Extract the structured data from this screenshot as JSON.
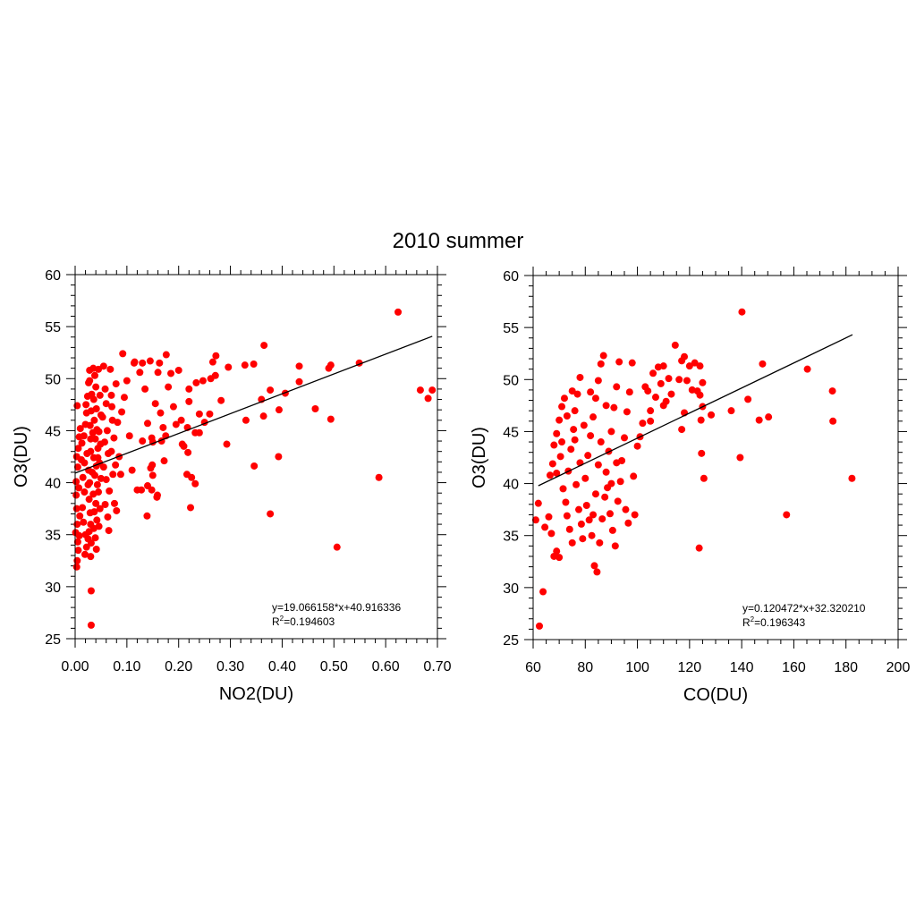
{
  "title": "2010 summer",
  "chart_data": [
    {
      "type": "scatter",
      "xlabel": "NO2(DU)",
      "ylabel": "O3(DU)",
      "xlim": [
        0,
        0.7
      ],
      "ylim": [
        25,
        60
      ],
      "x_major": 0.1,
      "x_minor": 0.02,
      "y_major": 5,
      "y_minor": 1,
      "xticks": [
        "0.00",
        "0.10",
        "0.20",
        "0.30",
        "0.40",
        "0.50",
        "0.60",
        "0.70"
      ],
      "yticks": [
        "25",
        "30",
        "35",
        "40",
        "45",
        "50",
        "55",
        "60"
      ],
      "marker_color": "#ff0000",
      "fit": {
        "slope": 19.066158,
        "intercept": 40.916336,
        "x_range": [
          0,
          0.69
        ]
      },
      "equation": "y=19.066158*x+40.916336",
      "r2_label": "R",
      "r2_sup": "2",
      "r2_value": "=0.194603",
      "points": [
        [
          0.624,
          56.4
        ],
        [
          0.365,
          53.2
        ],
        [
          0.667,
          48.9
        ],
        [
          0.682,
          48.1
        ],
        [
          0.69,
          48.9
        ],
        [
          0.587,
          40.5
        ],
        [
          0.506,
          33.8
        ],
        [
          0.377,
          37.0
        ],
        [
          0.346,
          41.6
        ],
        [
          0.393,
          42.5
        ],
        [
          0.494,
          46.1
        ],
        [
          0.464,
          47.1
        ],
        [
          0.549,
          51.5
        ],
        [
          0.494,
          51.3
        ],
        [
          0.49,
          51.0
        ],
        [
          0.433,
          51.2
        ],
        [
          0.433,
          49.7
        ],
        [
          0.406,
          48.6
        ],
        [
          0.377,
          48.9
        ],
        [
          0.36,
          48.0
        ],
        [
          0.364,
          46.4
        ],
        [
          0.394,
          47.0
        ],
        [
          0.33,
          46.0
        ],
        [
          0.293,
          43.7
        ],
        [
          0.328,
          51.3
        ],
        [
          0.345,
          51.4
        ],
        [
          0.296,
          51.1
        ],
        [
          0.272,
          52.2
        ],
        [
          0.266,
          51.6
        ],
        [
          0.271,
          50.3
        ],
        [
          0.262,
          50.0
        ],
        [
          0.247,
          49.8
        ],
        [
          0.234,
          49.6
        ],
        [
          0.282,
          47.9
        ],
        [
          0.26,
          46.6
        ],
        [
          0.24,
          46.6
        ],
        [
          0.25,
          45.8
        ],
        [
          0.22,
          47.8
        ],
        [
          0.232,
          44.8
        ],
        [
          0.217,
          45.3
        ],
        [
          0.207,
          43.7
        ],
        [
          0.218,
          42.9
        ],
        [
          0.216,
          40.8
        ],
        [
          0.225,
          40.5
        ],
        [
          0.232,
          39.9
        ],
        [
          0.223,
          37.6
        ],
        [
          0.139,
          36.8
        ],
        [
          0.128,
          39.3
        ],
        [
          0.14,
          39.7
        ],
        [
          0.148,
          39.3
        ],
        [
          0.159,
          38.8
        ],
        [
          0.158,
          38.6
        ],
        [
          0.15,
          40.7
        ],
        [
          0.149,
          41.7
        ],
        [
          0.146,
          41.4
        ],
        [
          0.15,
          43.9
        ],
        [
          0.13,
          44.0
        ],
        [
          0.167,
          44.0
        ],
        [
          0.172,
          42.1
        ],
        [
          0.17,
          45.3
        ],
        [
          0.175,
          44.5
        ],
        [
          0.092,
          52.4
        ],
        [
          0.114,
          51.5
        ],
        [
          0.13,
          51.5
        ],
        [
          0.145,
          51.7
        ],
        [
          0.163,
          51.5
        ],
        [
          0.176,
          52.3
        ],
        [
          0.031,
          29.6
        ],
        [
          0.031,
          26.3
        ],
        [
          0.003,
          31.9
        ],
        [
          0.004,
          32.5
        ],
        [
          0.002,
          38.8
        ],
        [
          0.003,
          37.5
        ],
        [
          0.004,
          36.0
        ],
        [
          0.001,
          35.2
        ],
        [
          0.005,
          34.3
        ],
        [
          0.006,
          33.5
        ],
        [
          0.002,
          40.1
        ],
        [
          0.005,
          41.5
        ],
        [
          0.003,
          42.5
        ],
        [
          0.006,
          43.3
        ],
        [
          0.008,
          44.4
        ],
        [
          0.004,
          47.4
        ],
        [
          0.01,
          45.2
        ],
        [
          0.007,
          39.5
        ],
        [
          0.009,
          36.8
        ],
        [
          0.008,
          34.9
        ],
        [
          0.012,
          42.2
        ],
        [
          0.015,
          40.5
        ],
        [
          0.018,
          39.1
        ],
        [
          0.014,
          37.6
        ],
        [
          0.016,
          36.2
        ],
        [
          0.02,
          35.0
        ],
        [
          0.022,
          33.8
        ],
        [
          0.019,
          33.1
        ],
        [
          0.025,
          34.6
        ],
        [
          0.013,
          43.8
        ],
        [
          0.017,
          44.5
        ],
        [
          0.02,
          45.6
        ],
        [
          0.022,
          46.7
        ],
        [
          0.024,
          48.3
        ],
        [
          0.026,
          49.6
        ],
        [
          0.028,
          50.8
        ],
        [
          0.021,
          47.5
        ],
        [
          0.023,
          42.8
        ],
        [
          0.026,
          41.2
        ],
        [
          0.028,
          40.0
        ],
        [
          0.027,
          38.4
        ],
        [
          0.029,
          37.1
        ],
        [
          0.03,
          36.0
        ],
        [
          0.027,
          35.3
        ],
        [
          0.031,
          34.2
        ],
        [
          0.03,
          32.9
        ],
        [
          0.025,
          39.8
        ],
        [
          0.018,
          41.9
        ],
        [
          0.03,
          43.0
        ],
        [
          0.03,
          44.2
        ],
        [
          0.029,
          45.5
        ],
        [
          0.031,
          46.9
        ],
        [
          0.032,
          48.5
        ],
        [
          0.028,
          49.8
        ],
        [
          0.035,
          51.0
        ],
        [
          0.038,
          50.3
        ],
        [
          0.04,
          49.2
        ],
        [
          0.036,
          48.0
        ],
        [
          0.041,
          47.1
        ],
        [
          0.037,
          46.0
        ],
        [
          0.042,
          45.1
        ],
        [
          0.039,
          44.2
        ],
        [
          0.044,
          43.3
        ],
        [
          0.036,
          42.4
        ],
        [
          0.041,
          41.6
        ],
        [
          0.038,
          40.7
        ],
        [
          0.043,
          39.8
        ],
        [
          0.035,
          38.9
        ],
        [
          0.04,
          38.0
        ],
        [
          0.037,
          37.2
        ],
        [
          0.042,
          36.4
        ],
        [
          0.036,
          35.6
        ],
        [
          0.039,
          34.7
        ],
        [
          0.041,
          33.6
        ],
        [
          0.046,
          35.8
        ],
        [
          0.048,
          37.5
        ],
        [
          0.045,
          39.1
        ],
        [
          0.05,
          40.4
        ],
        [
          0.047,
          41.9
        ],
        [
          0.049,
          43.7
        ],
        [
          0.046,
          44.9
        ],
        [
          0.05,
          46.5
        ],
        [
          0.048,
          48.4
        ],
        [
          0.045,
          50.9
        ],
        [
          0.033,
          41.0
        ],
        [
          0.034,
          44.8
        ],
        [
          0.044,
          42.4
        ],
        [
          0.055,
          51.2
        ],
        [
          0.058,
          49.0
        ],
        [
          0.06,
          47.6
        ],
        [
          0.053,
          46.3
        ],
        [
          0.062,
          45.0
        ],
        [
          0.057,
          43.9
        ],
        [
          0.064,
          42.8
        ],
        [
          0.055,
          41.5
        ],
        [
          0.06,
          40.3
        ],
        [
          0.066,
          39.2
        ],
        [
          0.058,
          37.9
        ],
        [
          0.063,
          36.7
        ],
        [
          0.068,
          50.9
        ],
        [
          0.07,
          48.4
        ],
        [
          0.072,
          46.0
        ],
        [
          0.075,
          44.3
        ],
        [
          0.07,
          43.0
        ],
        [
          0.078,
          41.7
        ],
        [
          0.073,
          40.8
        ],
        [
          0.076,
          38.0
        ],
        [
          0.08,
          37.3
        ],
        [
          0.065,
          35.4
        ],
        [
          0.071,
          47.3
        ],
        [
          0.079,
          49.5
        ],
        [
          0.082,
          45.8
        ],
        [
          0.085,
          42.5
        ],
        [
          0.088,
          40.8
        ],
        [
          0.09,
          46.8
        ],
        [
          0.095,
          48.2
        ],
        [
          0.1,
          49.8
        ],
        [
          0.105,
          44.5
        ],
        [
          0.11,
          41.2
        ],
        [
          0.115,
          51.6
        ],
        [
          0.12,
          39.3
        ],
        [
          0.125,
          50.6
        ],
        [
          0.135,
          49.0
        ],
        [
          0.14,
          45.7
        ],
        [
          0.148,
          44.3
        ],
        [
          0.155,
          47.6
        ],
        [
          0.16,
          50.6
        ],
        [
          0.165,
          46.7
        ],
        [
          0.18,
          49.2
        ],
        [
          0.185,
          50.5
        ],
        [
          0.19,
          47.3
        ],
        [
          0.195,
          45.6
        ],
        [
          0.2,
          50.8
        ],
        [
          0.205,
          46.0
        ],
        [
          0.21,
          43.5
        ],
        [
          0.22,
          49.0
        ],
        [
          0.24,
          44.8
        ]
      ]
    },
    {
      "type": "scatter",
      "xlabel": "CO(DU)",
      "ylabel": "O3(DU)",
      "xlim": [
        60,
        200
      ],
      "ylim": [
        25,
        60
      ],
      "x_major": 20,
      "x_minor": 5,
      "y_major": 5,
      "y_minor": 1,
      "xticks": [
        "60",
        "80",
        "100",
        "120",
        "140",
        "160",
        "180",
        "200"
      ],
      "yticks": [
        "25",
        "30",
        "35",
        "40",
        "45",
        "50",
        "55",
        "60"
      ],
      "marker_color": "#ff0000",
      "fit": {
        "slope": 0.120472,
        "intercept": 32.32021,
        "x_range": [
          62,
          182.5
        ]
      },
      "equation": "y=0.120472*x+32.320210",
      "r2_label": "R",
      "r2_sup": "2",
      "r2_value": "=0.196343",
      "points": [
        [
          140.1,
          56.5
        ],
        [
          114.5,
          53.3
        ],
        [
          148,
          51.5
        ],
        [
          165.2,
          51.0
        ],
        [
          174.8,
          48.9
        ],
        [
          175,
          46.0
        ],
        [
          150.3,
          46.4
        ],
        [
          146.7,
          46.1
        ],
        [
          142.4,
          48.1
        ],
        [
          136,
          47.0
        ],
        [
          139.4,
          42.5
        ],
        [
          157.2,
          37.0
        ],
        [
          182.3,
          40.5
        ],
        [
          123.7,
          33.8
        ],
        [
          124.6,
          42.9
        ],
        [
          125.5,
          40.5
        ],
        [
          128.3,
          46.6
        ],
        [
          125,
          47.4
        ],
        [
          124.4,
          46.1
        ],
        [
          63.8,
          29.6
        ],
        [
          62.4,
          26.3
        ],
        [
          61,
          36.5
        ],
        [
          62,
          38.1
        ],
        [
          64.5,
          35.8
        ],
        [
          66,
          36.8
        ],
        [
          67,
          35.2
        ],
        [
          68,
          33.0
        ],
        [
          69,
          33.5
        ],
        [
          70,
          32.9
        ],
        [
          66.5,
          40.8
        ],
        [
          67.5,
          41.9
        ],
        [
          68,
          43.7
        ],
        [
          69,
          44.8
        ],
        [
          70,
          46.1
        ],
        [
          71,
          47.4
        ],
        [
          72,
          48.2
        ],
        [
          70.5,
          42.6
        ],
        [
          71.5,
          39.5
        ],
        [
          72.5,
          38.2
        ],
        [
          73,
          36.9
        ],
        [
          74,
          35.6
        ],
        [
          75,
          34.3
        ],
        [
          73.5,
          41.2
        ],
        [
          74.5,
          43.3
        ],
        [
          75.5,
          45.2
        ],
        [
          76,
          47.0
        ],
        [
          77,
          48.6
        ],
        [
          78,
          50.2
        ],
        [
          76.5,
          39.9
        ],
        [
          77.5,
          37.5
        ],
        [
          78.5,
          36.1
        ],
        [
          79,
          34.7
        ],
        [
          80,
          40.5
        ],
        [
          81,
          42.7
        ],
        [
          82,
          44.6
        ],
        [
          83,
          46.4
        ],
        [
          84,
          48.2
        ],
        [
          85,
          49.9
        ],
        [
          86,
          51.5
        ],
        [
          87,
          52.3
        ],
        [
          80.5,
          37.9
        ],
        [
          81.5,
          36.5
        ],
        [
          82.5,
          35.0
        ],
        [
          83.5,
          32.1
        ],
        [
          84.5,
          31.5
        ],
        [
          85.5,
          34.3
        ],
        [
          86.5,
          36.6
        ],
        [
          87.5,
          38.7
        ],
        [
          88,
          41.1
        ],
        [
          89,
          43.1
        ],
        [
          90,
          45.0
        ],
        [
          91,
          47.3
        ],
        [
          92,
          49.3
        ],
        [
          93,
          51.7
        ],
        [
          88.5,
          39.6
        ],
        [
          89.5,
          37.1
        ],
        [
          90.5,
          35.5
        ],
        [
          91.5,
          34.0
        ],
        [
          92.5,
          38.3
        ],
        [
          93.5,
          40.2
        ],
        [
          94,
          42.2
        ],
        [
          95,
          44.4
        ],
        [
          96,
          46.9
        ],
        [
          97,
          48.8
        ],
        [
          98,
          51.6
        ],
        [
          95.5,
          37.5
        ],
        [
          96.5,
          36.2
        ],
        [
          98.5,
          40.7
        ],
        [
          99,
          37.0
        ],
        [
          79.5,
          45.6
        ],
        [
          84,
          39.0
        ],
        [
          86,
          44.0
        ],
        [
          78,
          42.0
        ],
        [
          75,
          48.9
        ],
        [
          73,
          46.5
        ],
        [
          82,
          48.8
        ],
        [
          88,
          47.5
        ],
        [
          92,
          42.0
        ],
        [
          85,
          41.8
        ],
        [
          76,
          44.2
        ],
        [
          71,
          44.0
        ],
        [
          69,
          41.0
        ],
        [
          83,
          37.0
        ],
        [
          90,
          40.0
        ],
        [
          101,
          44.5
        ],
        [
          102,
          45.8
        ],
        [
          103,
          49.3
        ],
        [
          104,
          48.9
        ],
        [
          105,
          46.0
        ],
        [
          106,
          50.6
        ],
        [
          107,
          48.3
        ],
        [
          108,
          51.2
        ],
        [
          109,
          49.6
        ],
        [
          110,
          51.3
        ],
        [
          111,
          47.9
        ],
        [
          112,
          50.1
        ],
        [
          113,
          48.6
        ],
        [
          116,
          50.0
        ],
        [
          117,
          51.8
        ],
        [
          118,
          52.2
        ],
        [
          119,
          49.9
        ],
        [
          120,
          51.3
        ],
        [
          121,
          49.0
        ],
        [
          122,
          51.6
        ],
        [
          123,
          48.9
        ],
        [
          124,
          51.3
        ],
        [
          125,
          49.7
        ],
        [
          124,
          48.5
        ],
        [
          117,
          45.2
        ],
        [
          118,
          46.8
        ],
        [
          110,
          47.5
        ],
        [
          105,
          47.0
        ],
        [
          100,
          43.6
        ]
      ]
    }
  ]
}
